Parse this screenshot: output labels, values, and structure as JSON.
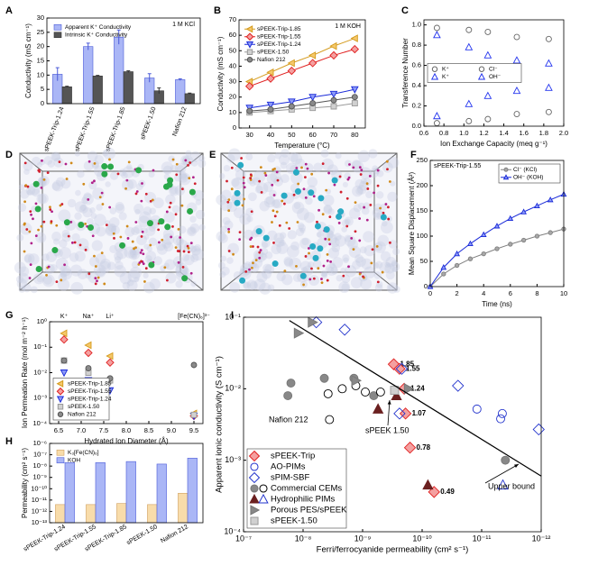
{
  "chart_data": [
    {
      "panel": "A",
      "type": "bar",
      "y_label": "Conductivity (mS cm⁻¹)",
      "categories": [
        "sPEEK-Trip-1.24",
        "sPEEK-Trip-1.55",
        "sPEEK-Trip-1.85",
        "sPEEK-1.50",
        "Nafion 212"
      ],
      "series": [
        {
          "name": "Apparent K⁺ Conductivity",
          "color": "#aab6f6",
          "edge": "#4a5ad8",
          "values": [
            10.3,
            20,
            23.3,
            9,
            8.4
          ],
          "errors": [
            2.3,
            1.2,
            2.5,
            1.5,
            0.3
          ]
        },
        {
          "name": "Intrinsic K⁺ Conductivity",
          "color": "#555555",
          "edge": "#333333",
          "values": [
            5.9,
            9.7,
            11.2,
            4.5,
            3.5
          ],
          "errors": [
            0.2,
            0.2,
            0.3,
            1.0,
            0.2
          ]
        }
      ],
      "ylim": [
        0,
        30
      ],
      "yticks": [
        0,
        5,
        10,
        15,
        20,
        25,
        30
      ],
      "legend": "upper left",
      "annotations": [
        "1 M KCl"
      ]
    },
    {
      "panel": "B",
      "type": "line",
      "x_label": "Temperature (°C)",
      "y_label": "Conductivity (mS cm⁻¹)",
      "x": [
        30,
        40,
        50,
        60,
        70,
        80
      ],
      "series": [
        {
          "name": "sPEEK-Trip-1.85",
          "marker": "triangle-left",
          "color": "#d49a1c",
          "fill": "#f5c86a",
          "values": [
            30,
            36,
            42,
            47,
            53,
            58
          ]
        },
        {
          "name": "sPEEK-Trip-1.55",
          "marker": "diamond",
          "color": "#e02020",
          "fill": "#f4a0a0",
          "values": [
            27,
            32,
            37,
            42,
            47,
            51
          ]
        },
        {
          "name": "sPEEK-Trip-1.24",
          "marker": "triangle-down",
          "color": "#1a2ad8",
          "fill": "#8c9af8",
          "values": [
            13,
            15,
            17,
            20,
            22,
            25
          ]
        },
        {
          "name": "sPEEK-1.50",
          "marker": "square",
          "color": "#999999",
          "fill": "#d0d0d0",
          "values": [
            10,
            11,
            12,
            13,
            14,
            16
          ]
        },
        {
          "name": "Nafion 212",
          "marker": "circle",
          "color": "#555555",
          "fill": "#8a8a8a",
          "values": [
            11,
            12,
            14,
            16,
            18,
            20
          ]
        }
      ],
      "xlim": [
        25,
        85
      ],
      "xticks": [
        30,
        40,
        50,
        60,
        70,
        80
      ],
      "ylim": [
        0,
        70
      ],
      "yticks": [
        0,
        10,
        20,
        30,
        40,
        50,
        60,
        70
      ],
      "legend": "upper left",
      "annotations": [
        "1 M KOH"
      ]
    },
    {
      "panel": "C",
      "type": "scatter",
      "x_label": "Ion Exchange Capacity (meq g⁻¹)",
      "y_label": "Transference Number",
      "x": [
        0.73,
        1.05,
        1.24,
        1.53,
        1.85
      ],
      "series": [
        {
          "name": "K⁺",
          "marker": "circle",
          "color": "#666666",
          "fill": "none",
          "values": [
            0.97,
            0.95,
            0.93,
            0.88,
            0.86
          ]
        },
        {
          "name": "Cl⁻",
          "marker": "circle",
          "color": "#666666",
          "fill": "none",
          "values": [
            0.03,
            0.05,
            0.07,
            0.12,
            0.14
          ]
        },
        {
          "name": "K⁺",
          "marker": "triangle-up",
          "color": "#2233ee",
          "fill": "none",
          "values": [
            0.9,
            0.78,
            0.7,
            0.65,
            0.62
          ]
        },
        {
          "name": "OH⁻",
          "marker": "triangle-up",
          "color": "#2233ee",
          "fill": "none",
          "values": [
            0.1,
            0.22,
            0.3,
            0.35,
            0.38
          ]
        }
      ],
      "xlim": [
        0.6,
        2.0
      ],
      "xticks": [
        0.6,
        0.8,
        {
          "value": 1,
          "label": "1.0"
        },
        1.2,
        1.4,
        1.6,
        1.8,
        {
          "value": 2,
          "label": "2.0"
        }
      ],
      "ylim": [
        0,
        1.05
      ],
      "yticks": [
        {
          "value": 0,
          "label": "0.0"
        },
        0.2,
        0.4,
        0.6,
        0.8,
        {
          "value": 1,
          "label": "1.0"
        }
      ],
      "legend": "center left"
    },
    {
      "panel": "D",
      "type": "image"
    },
    {
      "panel": "E",
      "type": "image"
    },
    {
      "panel": "F",
      "type": "line",
      "x_label": "Time (ns)",
      "y_label": "Mean Square Displacement (Å²)",
      "x": [
        0,
        1,
        2,
        3,
        4,
        5,
        6,
        7,
        8,
        9,
        10
      ],
      "series": [
        {
          "name": "Cl⁻ (KCl)",
          "marker": "circle",
          "color": "#808080",
          "fill": "#a8a8a8",
          "values": [
            0,
            25,
            42,
            55,
            65,
            75,
            84,
            92,
            100,
            107,
            114
          ]
        },
        {
          "name": "OH⁻ (KOH)",
          "marker": "triangle-up",
          "color": "#1a2ad8",
          "fill": "#8c9af8",
          "values": [
            0,
            38,
            65,
            85,
            103,
            120,
            135,
            148,
            160,
            172,
            183
          ]
        }
      ],
      "xlim": [
        0,
        10
      ],
      "xticks": [
        0,
        2,
        4,
        6,
        8,
        10
      ],
      "ylim": [
        0,
        250
      ],
      "yticks": [
        0,
        50,
        100,
        150,
        200,
        250
      ],
      "legend": "upper right",
      "annotations": [
        "sPEEK-Trip-1.55"
      ]
    },
    {
      "panel": "G",
      "type": "scatter",
      "x_label": "Hydrated Ion Diameter (Å)",
      "y_label": "Ion Permeation Rate (mol m⁻² h⁻¹)",
      "x": [
        6.62,
        7.16,
        7.64,
        9.5
      ],
      "top_labels": [
        "K⁺",
        "Na⁺",
        "Li⁺",
        "[Fe(CN)₆]³⁻"
      ],
      "series": [
        {
          "name": "sPEEK-Trip-1.85",
          "marker": "triangle-left",
          "color": "#d49a1c",
          "fill": "#f5c86a",
          "values": [
            0.35,
            0.12,
            0.045,
            0.00025
          ]
        },
        {
          "name": "sPEEK-Trip-1.55",
          "marker": "diamond",
          "color": "#e02020",
          "fill": "#f4a0a0",
          "values": [
            0.2,
            0.06,
            0.025,
            0.0002
          ]
        },
        {
          "name": "sPEEK-Trip-1.24",
          "marker": "triangle-down",
          "color": "#1a2ad8",
          "fill": "#8c9af8",
          "values": [
            0.01,
            0.005,
            0.002,
            0.0002
          ]
        },
        {
          "name": "sPEEK-1.50",
          "marker": "square",
          "color": "#999999",
          "fill": "#d0d0d0",
          "values": [
            0.03,
            0.01,
            0.005,
            0.00022
          ]
        },
        {
          "name": "Nafion 212",
          "marker": "circle",
          "color": "#555555",
          "fill": "#8a8a8a",
          "values": [
            0.03,
            0.015,
            0.006,
            0.02
          ]
        }
      ],
      "xlim": [
        6.3,
        9.7
      ],
      "xticks": [
        6.5,
        {
          "value": 7,
          "label": "7.0"
        },
        7.5,
        {
          "value": 8,
          "label": "8.0"
        },
        8.5,
        {
          "value": 9,
          "label": "9.0"
        },
        9.5
      ],
      "ylog": true,
      "ylim": [
        0.0001,
        1
      ],
      "yticks": [
        {
          "value": 0.0001,
          "label": "10⁻⁴"
        },
        {
          "value": 0.001,
          "label": "10⁻³"
        },
        {
          "value": 0.01,
          "label": "10⁻²"
        },
        {
          "value": 0.1,
          "label": "10⁻¹"
        },
        {
          "value": 1,
          "label": "10⁰"
        }
      ],
      "legend": "lower left"
    },
    {
      "panel": "H",
      "type": "bar",
      "y_label": "Permeability (cm² s⁻¹)",
      "categories": [
        "sPEEK-Trip-1.24",
        "sPEEK-Trip-1.55",
        "sPEEK-Trip-1.85",
        "sPEEK-1.50",
        "Nafion 212"
      ],
      "series": [
        {
          "name": "K₃[Fe(CN)₆]",
          "color": "#f8dcaa",
          "edge": "#d0a060",
          "values": [
            4e-12,
            4e-12,
            5e-12,
            4e-12,
            4e-11
          ]
        },
        {
          "name": "KOH",
          "color": "#aab6f6",
          "edge": "#4a5ad8",
          "values": [
            2e-08,
            2e-08,
            2.5e-08,
            1.5e-08,
            5e-08
          ]
        }
      ],
      "ylog": true,
      "ylim": [
        1e-13,
        1e-06
      ],
      "yticks": [
        {
          "value": 1e-13,
          "label": "10⁻¹³"
        },
        {
          "value": 1e-12,
          "label": "10⁻¹²"
        },
        {
          "value": 1e-11,
          "label": "10⁻¹¹"
        },
        {
          "value": 1e-10,
          "label": "10⁻¹⁰"
        },
        {
          "value": 1e-09,
          "label": "10⁻⁹"
        },
        {
          "value": 1e-08,
          "label": "10⁻⁸"
        },
        {
          "value": 1e-07,
          "label": "10⁻⁷"
        },
        {
          "value": 1e-06,
          "label": "10⁻⁶"
        }
      ],
      "legend": "upper left"
    },
    {
      "panel": "I",
      "type": "scatter",
      "x_label": "Ferri/ferrocyanide permeability (cm² s⁻¹)",
      "y_label": "Apparent ionic conductivity (S cm⁻¹)",
      "series": [
        {
          "name": "sPEEK-Trip",
          "marker": "diamond",
          "color": "#e02020",
          "fill": "#f4a0a0",
          "x": [
            3e-10,
            2.4e-10,
            2e-10,
            1.9e-10,
            1.6e-10,
            6.3e-11
          ],
          "values": [
            0.022,
            0.019,
            0.01,
            0.0045,
            0.0015,
            0.00036
          ],
          "labels": [
            "1.85",
            "1.55",
            "1.24",
            "1.07",
            "0.78",
            "0.49"
          ]
        },
        {
          "name": "AO-PIMs",
          "marker": "circle",
          "color": "#2233cc",
          "fill": "none",
          "x": [
            1.2e-11,
            4.5e-12,
            4.8e-12
          ],
          "values": [
            0.0052,
            0.0045,
            0.0038
          ]
        },
        {
          "name": "sPIM-SBF",
          "marker": "diamond",
          "color": "#2233cc",
          "fill": "none",
          "x": [
            6e-09,
            2e-09,
            2.2e-10,
            2.5e-11,
            1.1e-12,
            2.4e-10
          ],
          "values": [
            0.085,
            0.067,
            0.019,
            0.011,
            0.0027,
            0.0045
          ]
        },
        {
          "name": "Commercial CEMs",
          "marker": "circle",
          "color": "#777777",
          "fill": "#888888",
          "open_color": "#000000",
          "x": [
            1.8e-08,
            1.6e-08,
            4.4e-09,
            1.4e-09,
            6.5e-10,
            4e-12,
            3.8e-09,
            2.2e-09,
            1.3e-09,
            9e-10,
            5e-10,
            3.6e-09
          ],
          "values": [
            0.008,
            0.012,
            0.014,
            0.014,
            0.008,
            0.001,
            0.0085,
            0.01,
            0.011,
            0.009,
            0.009,
            0.0037
          ],
          "open": [
            false,
            false,
            false,
            false,
            false,
            false,
            true,
            true,
            true,
            true,
            true,
            true
          ]
        },
        {
          "name": "Hydrophilic PIMs",
          "marker": "triangle-up",
          "color": "#6b2020",
          "fill": "#6b2020",
          "open_color": "#2233cc",
          "x": [
            5.5e-10,
            2.7e-10,
            8e-11,
            4.4e-12
          ],
          "values": [
            0.0052,
            0.008,
            0.00045,
            0.00045
          ],
          "open": [
            false,
            false,
            false,
            true
          ]
        },
        {
          "name": "Porous PES/sPEEK",
          "marker": "triangle-right",
          "color": "#777777",
          "fill": "#888888",
          "x": [
            1.2e-08,
            7e-09,
            1.3e-09,
            1.7e-10
          ],
          "values": [
            0.06,
            0.085,
            0.013,
            0.01
          ]
        },
        {
          "name": "sPEEK-1.50",
          "marker": "square",
          "color": "#999999",
          "fill": "#d0d0d0",
          "x": [
            2.9e-10
          ],
          "values": [
            0.0095
          ]
        }
      ],
      "upper_bound": {
        "x": [
          1.7e-08,
          1e-12
        ],
        "values": [
          0.09,
          0.0006
        ]
      },
      "xlog": true,
      "xlim": [
        1e-07,
        1e-12
      ],
      "xticks": [
        {
          "value": 1e-07,
          "label": "10⁻⁷"
        },
        {
          "value": 1e-08,
          "label": "10⁻⁸"
        },
        {
          "value": 1e-09,
          "label": "10⁻⁹"
        },
        {
          "value": 1e-10,
          "label": "10⁻¹⁰"
        },
        {
          "value": 1e-11,
          "label": "10⁻¹¹"
        },
        {
          "value": 1e-12,
          "label": "10⁻¹²"
        }
      ],
      "ylog": true,
      "ylim": [
        0.0001,
        0.1
      ],
      "yticks": [
        {
          "value": 0.0001,
          "label": "10⁻⁴"
        },
        {
          "value": 0.001,
          "label": "10⁻³"
        },
        {
          "value": 0.01,
          "label": "10⁻²"
        },
        {
          "value": 0.1,
          "label": "10⁻¹"
        }
      ],
      "legend": "lower left",
      "annotations": [
        "Nafion 212",
        "sPEEK 1.50",
        "Upper bound"
      ]
    }
  ]
}
